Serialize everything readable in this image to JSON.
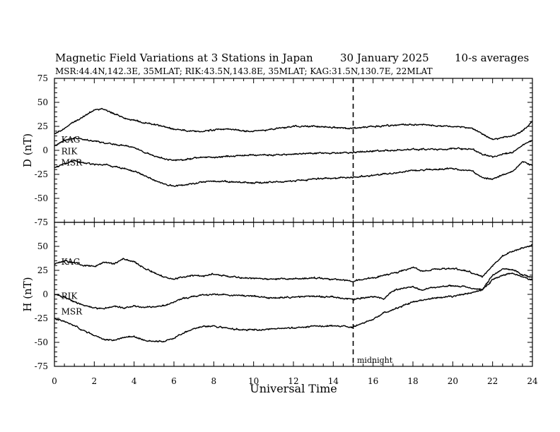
{
  "header": {
    "title": "Magnetic Field Variations at 3 Stations in Japan",
    "date": "30 January  2025",
    "averaging": "10-s averages",
    "stations": "MSR:44.4N,142.3E, 35MLAT;  RIK:43.5N,143.8E, 35MLAT;  KAG:31.5N,130.7E, 22MLAT"
  },
  "xlabel": "Universal Time",
  "midnight_label": "midnight",
  "colors": {
    "line": "#000000",
    "background": "#ffffff"
  },
  "chart_data": [
    {
      "type": "line",
      "panel": "D",
      "ylabel": "D (nT)",
      "xlim": [
        0,
        24
      ],
      "ylim": [
        -75,
        75
      ],
      "x_ticks": [
        0,
        2,
        4,
        6,
        8,
        10,
        12,
        14,
        16,
        18,
        20,
        22,
        24
      ],
      "y_ticks": [
        -75,
        -50,
        -25,
        0,
        25,
        50,
        75
      ],
      "y_tick_labels": [
        "-75",
        "-50",
        "-25",
        "0",
        "25",
        "50",
        "75"
      ],
      "midnight_x": 15,
      "grid": false,
      "series": [
        {
          "name": "KAG",
          "label_at": {
            "x": 0.2,
            "y": 11
          },
          "x": [
            0,
            0.5,
            1,
            1.5,
            2,
            2.5,
            3,
            3.5,
            4,
            4.5,
            5,
            5.5,
            6,
            6.5,
            7,
            7.5,
            8,
            8.5,
            9,
            9.5,
            10,
            11,
            12,
            13,
            14,
            15,
            16,
            17,
            18,
            19,
            20,
            21,
            21.5,
            22,
            22.5,
            23,
            23.5,
            24
          ],
          "y": [
            17,
            23,
            30,
            36,
            42,
            43,
            38,
            34,
            31,
            29,
            27,
            25,
            22,
            21,
            20,
            20,
            21,
            22,
            22,
            20,
            20,
            22,
            25,
            25,
            24,
            23,
            25,
            26,
            27,
            26,
            25,
            23,
            17,
            11,
            13,
            15,
            20,
            30
          ]
        },
        {
          "name": "RIK",
          "label_at": {
            "x": 0.2,
            "y": -1
          },
          "x": [
            0,
            0.5,
            1,
            1.5,
            2,
            2.5,
            3,
            3.5,
            4,
            4.5,
            5,
            5.5,
            6,
            6.5,
            7,
            7.5,
            8,
            9,
            10,
            11,
            12,
            13,
            14,
            15,
            16,
            17,
            18,
            19,
            20,
            21,
            21.5,
            22,
            22.5,
            23,
            23.5,
            24
          ],
          "y": [
            5,
            10,
            13,
            11,
            10,
            8,
            6,
            5,
            3,
            -2,
            -6,
            -9,
            -10,
            -10,
            -8,
            -7,
            -7,
            -6,
            -5,
            -5,
            -4,
            -3,
            -3,
            -2,
            -1,
            0,
            1,
            1,
            2,
            1,
            -4,
            -7,
            -4,
            -2,
            5,
            10
          ]
        },
        {
          "name": "MSR",
          "label_at": {
            "x": 0.2,
            "y": -13
          },
          "x": [
            0,
            0.5,
            1,
            1.5,
            2,
            2.5,
            3,
            3.5,
            4,
            4.5,
            5,
            5.5,
            6,
            6.5,
            7,
            7.5,
            8,
            9,
            10,
            11,
            12,
            13,
            14,
            15,
            16,
            17,
            18,
            19,
            20,
            21,
            21.5,
            22,
            22.5,
            23,
            23.5,
            24
          ],
          "y": [
            -18,
            -14,
            -11,
            -13,
            -15,
            -15,
            -17,
            -19,
            -22,
            -26,
            -31,
            -35,
            -37,
            -36,
            -35,
            -33,
            -32,
            -33,
            -34,
            -33,
            -32,
            -30,
            -29,
            -28,
            -26,
            -24,
            -21,
            -20,
            -19,
            -22,
            -28,
            -30,
            -26,
            -22,
            -12,
            -16
          ]
        }
      ]
    },
    {
      "type": "line",
      "panel": "H",
      "ylabel": "H (nT)",
      "xlim": [
        0,
        24
      ],
      "ylim": [
        -75,
        75
      ],
      "x_ticks": [
        0,
        2,
        4,
        6,
        8,
        10,
        12,
        14,
        16,
        18,
        20,
        22,
        24
      ],
      "x_tick_labels": [
        "0",
        "2",
        "4",
        "6",
        "8",
        "10",
        "12",
        "14",
        "16",
        "18",
        "20",
        "22",
        "24"
      ],
      "y_ticks": [
        -75,
        -50,
        -25,
        0,
        25,
        50
      ],
      "y_tick_labels": [
        "-75",
        "-50",
        "-25",
        "0",
        "25",
        "50"
      ],
      "midnight_x": 15,
      "grid": false,
      "series": [
        {
          "name": "KAG",
          "label_at": {
            "x": 0.2,
            "y": 34
          },
          "x": [
            0,
            0.5,
            1,
            1.5,
            2,
            2.5,
            3,
            3.5,
            4,
            4.5,
            5,
            5.5,
            6,
            6.5,
            7,
            7.5,
            8,
            9,
            10,
            11,
            12,
            13,
            14,
            15,
            16,
            16.5,
            17,
            17.5,
            18,
            18.5,
            19,
            20,
            20.5,
            21,
            21.5,
            22,
            22.5,
            23,
            23.5,
            24
          ],
          "y": [
            31,
            35,
            33,
            30,
            29,
            33,
            32,
            37,
            34,
            27,
            23,
            18,
            16,
            18,
            20,
            19,
            21,
            18,
            17,
            16,
            16,
            17,
            16,
            14,
            17,
            20,
            22,
            25,
            28,
            24,
            26,
            27,
            25,
            22,
            18,
            30,
            40,
            45,
            48,
            51
          ]
        },
        {
          "name": "RIK",
          "label_at": {
            "x": 0.2,
            "y": -2
          },
          "x": [
            0,
            0.5,
            1,
            1.5,
            2,
            2.5,
            3,
            3.5,
            4,
            4.5,
            5,
            5.5,
            6,
            6.5,
            7,
            7.5,
            8,
            9,
            10,
            11,
            12,
            13,
            14,
            15,
            16,
            16.5,
            17,
            17.5,
            18,
            18.5,
            19,
            20,
            20.5,
            21,
            21.5,
            22,
            22.5,
            23,
            23.5,
            24
          ],
          "y": [
            0,
            -3,
            -8,
            -12,
            -14,
            -15,
            -12,
            -14,
            -12,
            -13,
            -13,
            -12,
            -8,
            -4,
            -2,
            -1,
            0,
            -1,
            -2,
            -4,
            -3,
            -2,
            -3,
            -5,
            -2,
            -5,
            4,
            6,
            8,
            4,
            7,
            9,
            8,
            6,
            5,
            20,
            26,
            26,
            20,
            18
          ]
        },
        {
          "name": "MSR",
          "label_at": {
            "x": 0.2,
            "y": -18
          },
          "x": [
            0,
            0.5,
            1,
            1.5,
            2,
            2.5,
            3,
            3.5,
            4,
            4.5,
            5,
            5.5,
            6,
            6.5,
            7,
            7.5,
            8,
            9,
            10,
            11,
            12,
            13,
            14,
            15,
            15.5,
            16,
            16.5,
            17,
            17.5,
            18,
            18.5,
            19,
            20,
            20.5,
            21,
            21.5,
            22,
            22.5,
            23,
            23.5,
            24
          ],
          "y": [
            -25,
            -28,
            -33,
            -38,
            -43,
            -47,
            -48,
            -45,
            -44,
            -48,
            -49,
            -49,
            -45,
            -40,
            -36,
            -33,
            -33,
            -36,
            -37,
            -36,
            -35,
            -33,
            -33,
            -34,
            -30,
            -26,
            -20,
            -16,
            -12,
            -8,
            -6,
            -4,
            -2,
            0,
            2,
            5,
            15,
            20,
            22,
            18,
            15
          ]
        }
      ]
    }
  ]
}
